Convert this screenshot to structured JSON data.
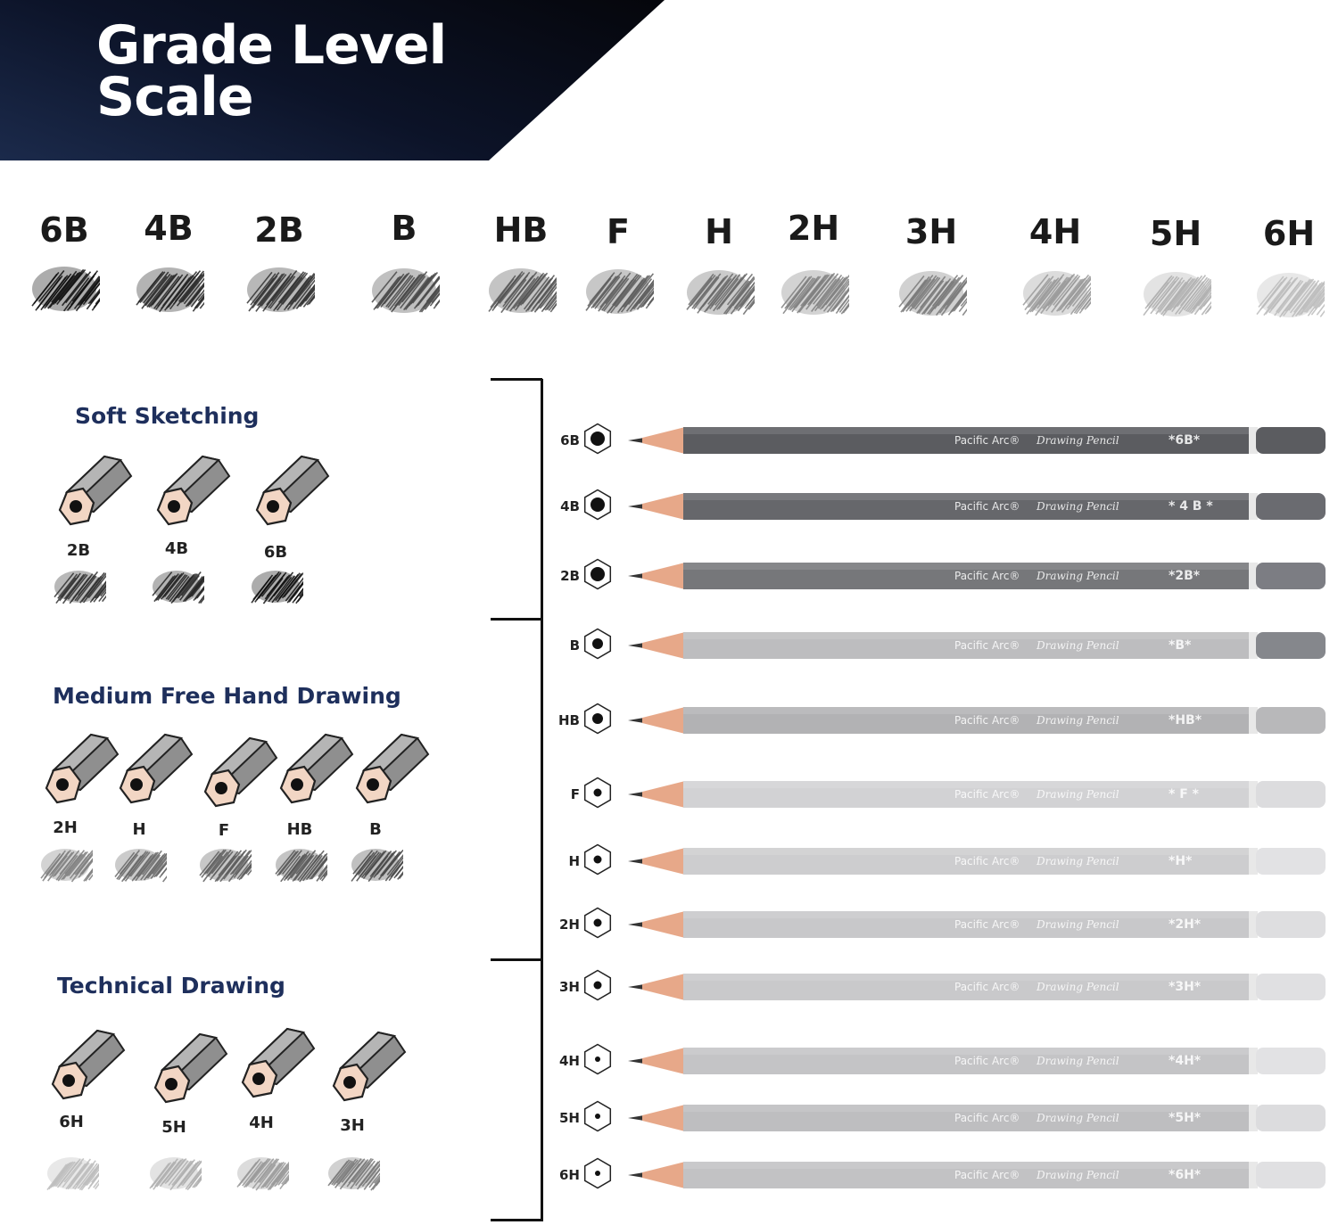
{
  "header": {
    "title_line1": "Grade Level",
    "title_line2": "Scale"
  },
  "scale": [
    {
      "grade": "6B",
      "shade": "#111111"
    },
    {
      "grade": "4B",
      "shade": "#262626"
    },
    {
      "grade": "2B",
      "shade": "#333333"
    },
    {
      "grade": "B",
      "shade": "#4a4a4a"
    },
    {
      "grade": "HB",
      "shade": "#555555"
    },
    {
      "grade": "F",
      "shade": "#5e5e5e"
    },
    {
      "grade": "H",
      "shade": "#6a6a6a"
    },
    {
      "grade": "2H",
      "shade": "#808080"
    },
    {
      "grade": "3H",
      "shade": "#7a7a7a"
    },
    {
      "grade": "4H",
      "shade": "#9a9a9a"
    },
    {
      "grade": "5H",
      "shade": "#b0b0b0"
    },
    {
      "grade": "6H",
      "shade": "#bdbdbd"
    }
  ],
  "sections": [
    {
      "title": "Soft Sketching",
      "items": [
        {
          "grade": "2B",
          "shade": "#333333"
        },
        {
          "grade": "4B",
          "shade": "#262626"
        },
        {
          "grade": "6B",
          "shade": "#111111"
        }
      ]
    },
    {
      "title": "Medium Free Hand Drawing",
      "items": [
        {
          "grade": "2H",
          "shade": "#808080"
        },
        {
          "grade": "H",
          "shade": "#6a6a6a"
        },
        {
          "grade": "F",
          "shade": "#5e5e5e"
        },
        {
          "grade": "HB",
          "shade": "#555555"
        },
        {
          "grade": "B",
          "shade": "#4a4a4a"
        }
      ]
    },
    {
      "title": "Technical Drawing",
      "items": [
        {
          "grade": "6H",
          "shade": "#bdbdbd"
        },
        {
          "grade": "5H",
          "shade": "#b0b0b0"
        },
        {
          "grade": "4H",
          "shade": "#9a9a9a"
        },
        {
          "grade": "3H",
          "shade": "#7a7a7a"
        }
      ]
    }
  ],
  "pencils": [
    {
      "grade": "6B",
      "mark": "*6B*",
      "body": "#5b5c60",
      "cap": "#5b5c60"
    },
    {
      "grade": "4B",
      "mark": "* 4 B *",
      "body": "#66676b",
      "cap": "#6a6b70"
    },
    {
      "grade": "2B",
      "mark": "*2B*",
      "body": "#76777a",
      "cap": "#7c7d83"
    },
    {
      "grade": "B",
      "mark": "*B*",
      "body": "#bdbdbf",
      "cap": "#85878c"
    },
    {
      "grade": "HB",
      "mark": "*HB*",
      "body": "#b2b2b4",
      "cap": "#b8b8ba"
    },
    {
      "grade": "F",
      "mark": "* F *",
      "body": "#d2d2d4",
      "cap": "#dcdcde"
    },
    {
      "grade": "H",
      "mark": "*H*",
      "body": "#cdcdcf",
      "cap": "#e2e2e4"
    },
    {
      "grade": "2H",
      "mark": "*2H*",
      "body": "#c8c8ca",
      "cap": "#dedee0"
    },
    {
      "grade": "3H",
      "mark": "*3H*",
      "body": "#c9c9cb",
      "cap": "#e0e0e2"
    },
    {
      "grade": "4H",
      "mark": "*4H*",
      "body": "#c4c4c6",
      "cap": "#e2e2e4"
    },
    {
      "grade": "5H",
      "mark": "*5H*",
      "body": "#bebec0",
      "cap": "#dcdcde"
    },
    {
      "grade": "6H",
      "mark": "*6H*",
      "body": "#c2c2c4",
      "cap": "#e0e0e2"
    }
  ],
  "pencil_brand": "Pacific Arc®",
  "pencil_model": "Drawing Pencil"
}
